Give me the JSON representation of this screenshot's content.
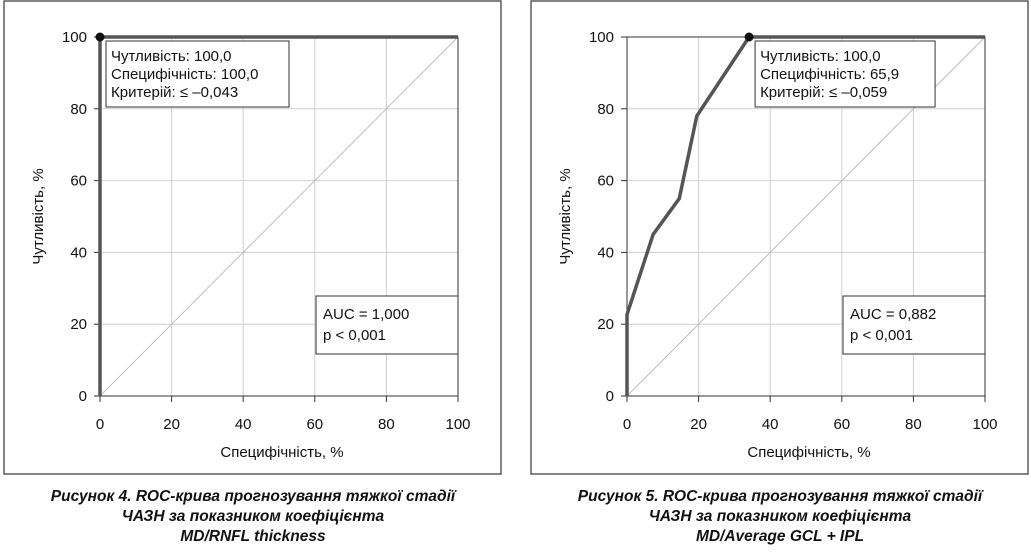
{
  "chart_data": [
    {
      "type": "line",
      "xlabel": "Специфічність, %",
      "ylabel": "Чутливість, %",
      "xlim": [
        0,
        100
      ],
      "ylim": [
        0,
        100
      ],
      "x_ticks": [
        "0",
        "20",
        "40",
        "60",
        "80",
        "100"
      ],
      "y_ticks": [
        "0",
        "20",
        "40",
        "60",
        "80",
        "100"
      ],
      "grid": true,
      "x_axis_values": "100 - specificity",
      "roc_points": [
        [
          0,
          0
        ],
        [
          0,
          100
        ],
        [
          100,
          100
        ]
      ],
      "reference_line": [
        [
          0,
          0
        ],
        [
          100,
          100
        ]
      ],
      "optimal_point": [
        0,
        100
      ],
      "annotation": [
        "Чутливість: 100,0",
        "Специфічність: 100,0",
        "Критерій: ≤ –0,043"
      ],
      "stats": [
        "AUC = 1,000",
        "p < 0,001"
      ],
      "caption": [
        "Рисунок 4.  ROC-крива прогнозування тяжкої стадії",
        "ЧАЗН за показником коефіцієнта",
        "MD/RNFL thickness"
      ]
    },
    {
      "type": "line",
      "xlabel": "Специфічність, %",
      "ylabel": "Чутливість, %",
      "xlim": [
        0,
        100
      ],
      "ylim": [
        0,
        100
      ],
      "x_ticks": [
        "0",
        "20",
        "40",
        "60",
        "80",
        "100"
      ],
      "y_ticks": [
        "0",
        "20",
        "40",
        "60",
        "80",
        "100"
      ],
      "grid": true,
      "x_axis_values": "100 - specificity",
      "roc_points": [
        [
          0,
          0
        ],
        [
          0,
          22.7
        ],
        [
          7.3,
          45
        ],
        [
          14.6,
          55
        ],
        [
          19.5,
          78
        ],
        [
          34.1,
          100
        ],
        [
          100,
          100
        ]
      ],
      "reference_line": [
        [
          0,
          0
        ],
        [
          100,
          100
        ]
      ],
      "optimal_point": [
        34.1,
        100
      ],
      "annotation": [
        "Чутливість: 100,0",
        "Специфічність: 65,9",
        "Критерій: ≤ –0,059"
      ],
      "stats": [
        "AUC = 0,882",
        "p < 0,001"
      ],
      "caption": [
        "Рисунок 5.  ROC-крива прогнозування тяжкої стадії",
        "ЧАЗН за показником коефіцієнта",
        "MD/Average GCL + IPL"
      ]
    }
  ],
  "colors": {
    "roc_curve": "#555555",
    "grid": "#cfcfcf",
    "reference": "#bdbdbd",
    "frame": "#333333"
  }
}
